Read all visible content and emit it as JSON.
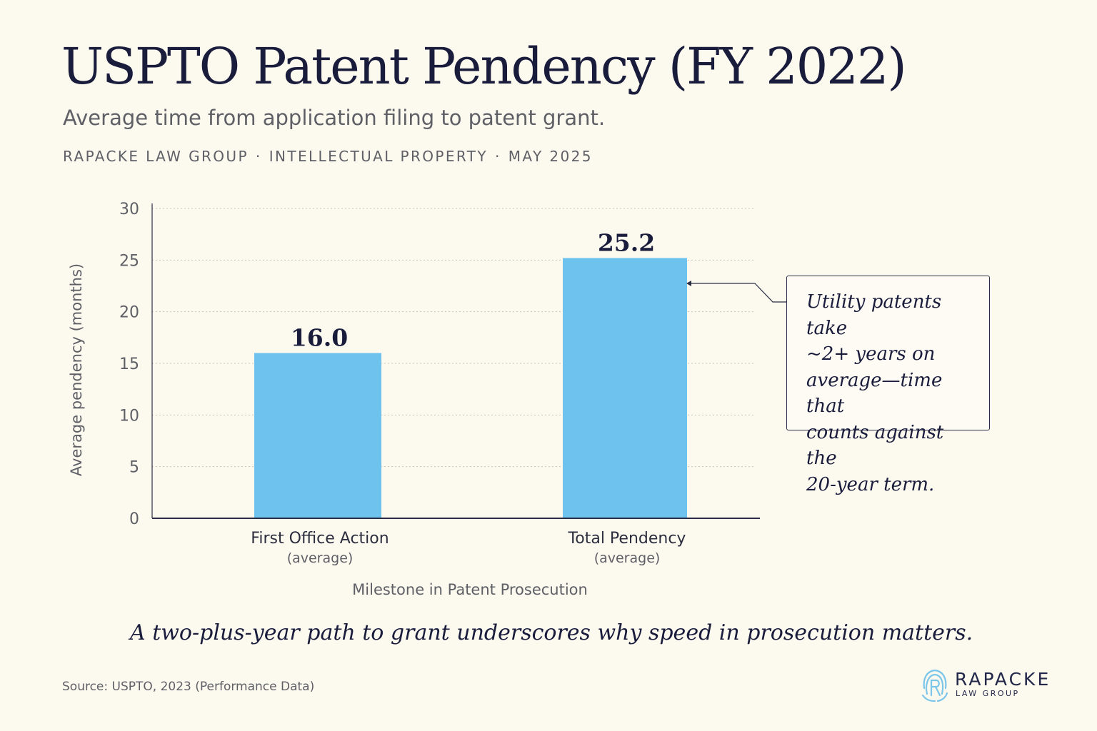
{
  "header": {
    "title": "USPTO Patent Pendency (FY 2022)",
    "subtitle": "Average time from application filing to patent grant.",
    "byline": [
      "RAPACKE LAW GROUP",
      "INTELLECTUAL PROPERTY",
      "MAY 2025"
    ],
    "byline_separator": "·"
  },
  "chart_data": {
    "type": "bar",
    "categories": [
      "First Office Action",
      "Total Pendency"
    ],
    "category_sublabels": [
      "(average)",
      "(average)"
    ],
    "values": [
      16.0,
      25.2
    ],
    "data_labels": [
      "16.0",
      "25.2"
    ],
    "xlabel": "Milestone in Patent Prosecution",
    "ylabel": "Average pendency (months)",
    "ylim": [
      0,
      30
    ],
    "yticks": [
      0,
      5,
      10,
      15,
      20,
      25,
      30
    ],
    "grid": true,
    "bar_color": "#6ec3ee"
  },
  "callout": {
    "lines": [
      "Utility patents take",
      "~2+ years on",
      "average—time that",
      "counts against the",
      "20-year term."
    ]
  },
  "takeaway": "A two-plus-year path to grant underscores why speed in prosecution matters.",
  "source": "Source: USPTO, 2023 (Performance Data)",
  "logo": {
    "name": "RAPACKE",
    "sub": "LAW GROUP",
    "icon": "fingerprint-r-icon",
    "color": "#7cc6ea"
  },
  "colors": {
    "background": "#fcf9ef",
    "title": "#1a1c3c",
    "bar": "#6ec3ee",
    "muted_text": "#5f6066"
  }
}
